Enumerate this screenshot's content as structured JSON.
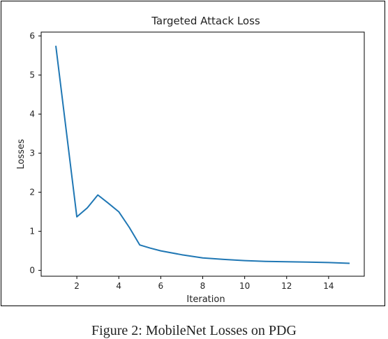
{
  "caption": "Figure 2: MobileNet Losses on PDG",
  "chart_data": {
    "type": "line",
    "title": "Targeted Attack Loss",
    "xlabel": "Iteration",
    "ylabel": "Losses",
    "xlim": [
      0.3,
      15.7
    ],
    "ylim": [
      -0.15,
      6.1
    ],
    "xticks": [
      2,
      4,
      6,
      8,
      10,
      12,
      14
    ],
    "yticks": [
      0,
      1,
      2,
      3,
      4,
      5,
      6
    ],
    "grid": false,
    "color": "#1f77b4",
    "series": [
      {
        "x": [
          1,
          2,
          2.5,
          3,
          3.5,
          4,
          4.5,
          5,
          5.5,
          6,
          7,
          8,
          9,
          10,
          11,
          12,
          13,
          14,
          15
        ],
        "values": [
          5.75,
          1.37,
          1.6,
          1.93,
          1.72,
          1.5,
          1.1,
          0.65,
          0.57,
          0.5,
          0.4,
          0.32,
          0.28,
          0.25,
          0.23,
          0.22,
          0.21,
          0.2,
          0.18
        ]
      }
    ]
  }
}
